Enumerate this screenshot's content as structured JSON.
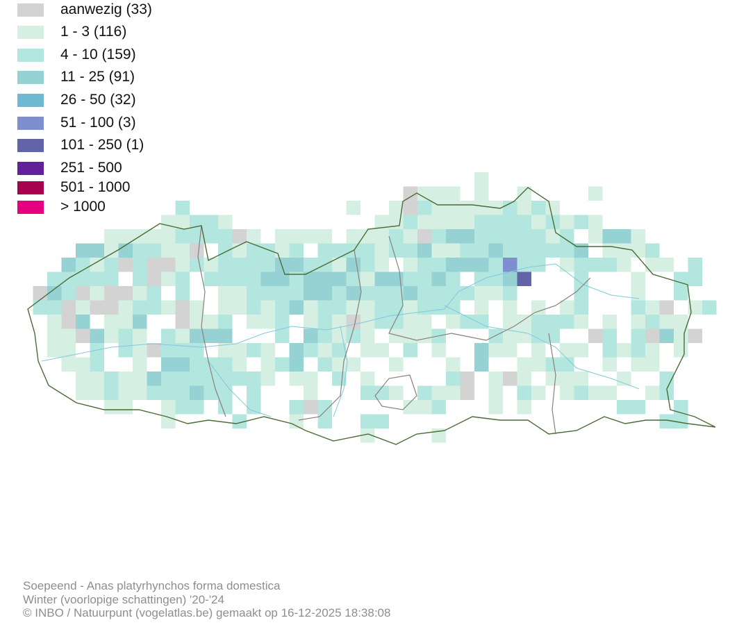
{
  "legend": [
    {
      "label": "aanwezig (33)",
      "color": "#d3d3d3"
    },
    {
      "label": "1 - 3 (116)",
      "color": "#d5f0e3"
    },
    {
      "label": "4 - 10 (159)",
      "color": "#b3e6de"
    },
    {
      "label": "11 - 25 (91)",
      "color": "#96d2d4"
    },
    {
      "label": "26 - 50 (32)",
      "color": "#6fb9d2"
    },
    {
      "label": "51 - 100 (3)",
      "color": "#7f8ecf"
    },
    {
      "label": "101 - 250 (1)",
      "color": "#6264a7"
    },
    {
      "label": "251 - 500",
      "color": "#62209a"
    },
    {
      "label": "501 - 1000",
      "color": "#a7004f"
    },
    {
      "label": "> 1000",
      "color": "#e4007e"
    }
  ],
  "map": {
    "border_color": "#4a6b35",
    "province_border_color": "#8a7f7a",
    "river_color": "#7fc8e0",
    "grid_legend_key": "a = aanwezig, 1-6 = legend classes, . = no data",
    "grid": [
      "................................1...............",
      "...........................a111.1..1....1.......",
      "...........2...........1..1a2111112121..........",
      "..........11221..........1121111222212121.......",
      "......111112222a1.1111.11121a2332222212.1331....",
      "....33132211a.212212.2222122311223222223.1112...",
      "...3212a2aa121222233221321.1223332522.12221.11.2",
      "..22222.2a12.222233233321332232.2236...2...1..22",
      ".a32a1aa12.2..112222332322232222112....2...1..2.",
      ".22a1aa1221a1.11212312211221222.1.1.1.12...21a.12",
      "..1a3.113..a112.112.121a12211.122.112221.1.1211.",
      "..11a3121.21333...2.32121.1112...21122..a2.2a31a",
      "..11.2.21a222.1121.3212.11.2.1..311.1.11.2121.1.",
      "...112..1.332221.123.211..1...1.3..1122..1.11...",
      "....11211322222221.11.2.1.....2a.1a1.111..1..2..",
      "....11211222322.2...1...221.211a.1.21.1211..12..",
      "......11..122.2.2..2a2.....112...1.1......22..2.",
      "..........1....2...1.2..22...................22.",
      "........................1....1.................."
    ]
  },
  "footer": {
    "line1": "Soepeend - Anas platyrhynchos forma domestica",
    "line2": "Winter (voorlopige schattingen) '20-'24",
    "line3": "© INBO / Natuurpunt (vogelatlas.be) gemaakt op 16-12-2025 18:38:08"
  }
}
